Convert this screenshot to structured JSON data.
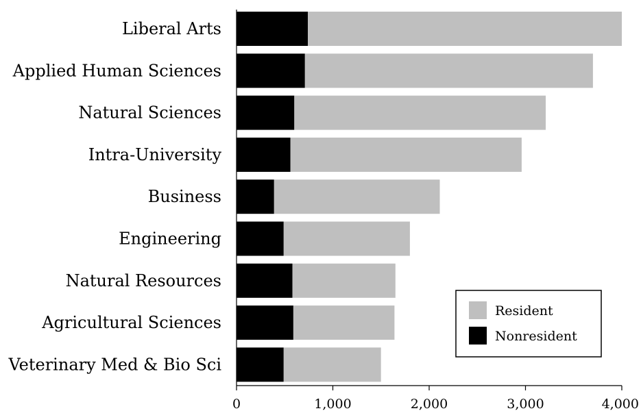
{
  "chart_data": {
    "type": "bar",
    "orientation": "horizontal",
    "stacked": true,
    "categories": [
      "Liberal Arts",
      "Applied Human Sciences",
      "Natural Sciences",
      "Intra-University",
      "Business",
      "Engineering",
      "Natural Resources",
      "Agricultural Sciences",
      "Veterinary Med & Bio Sci"
    ],
    "series": [
      {
        "name": "Nonresident",
        "color": "#000000",
        "values": [
          740,
          710,
          600,
          560,
          390,
          490,
          580,
          590,
          490
        ]
      },
      {
        "name": "Resident",
        "color": "#bfbfbf",
        "values": [
          3260,
          2990,
          2610,
          2400,
          1720,
          1310,
          1070,
          1050,
          1010
        ]
      }
    ],
    "x_ticks": [
      "0",
      "1,000",
      "2,000",
      "3,000",
      "4,000"
    ],
    "xlim": [
      0,
      4000
    ],
    "grid": false,
    "legend": {
      "placement": "bottom-right",
      "entries": [
        "Resident",
        "Nonresident"
      ]
    }
  }
}
